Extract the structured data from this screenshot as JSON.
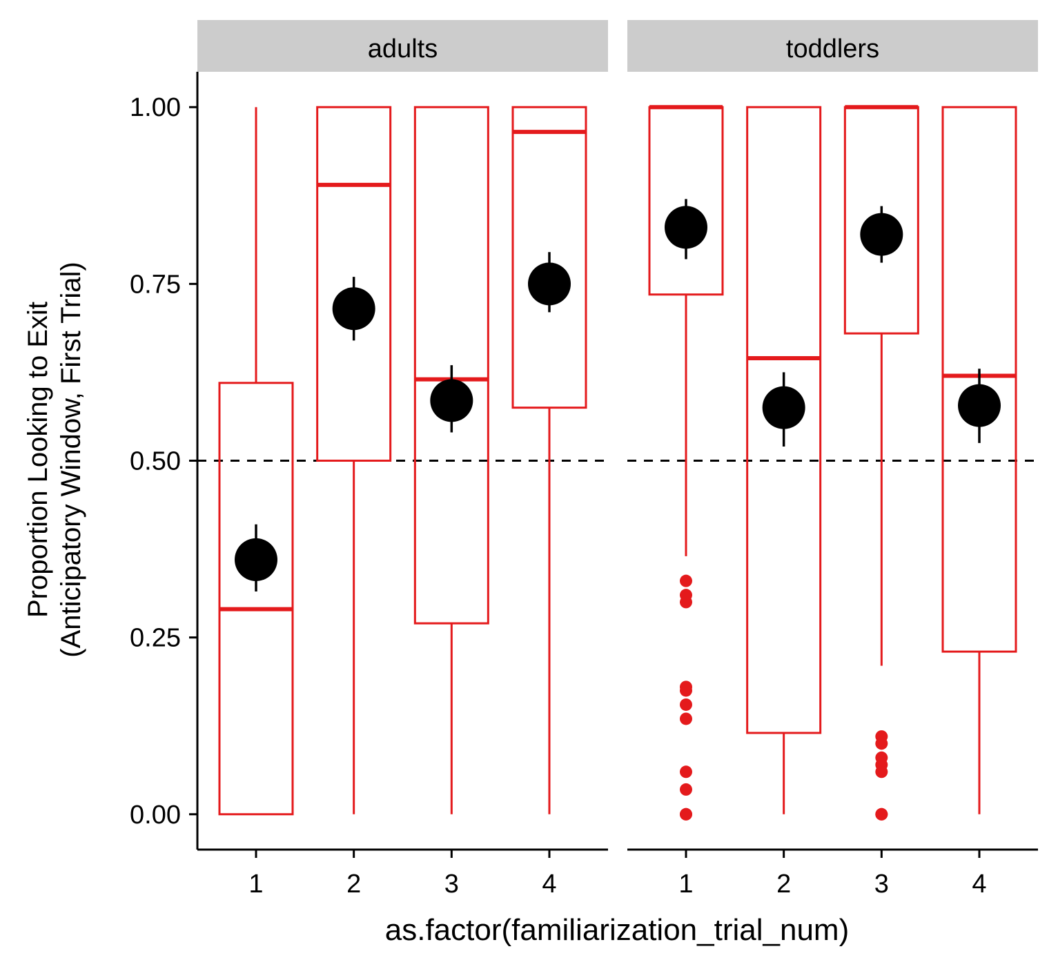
{
  "chart_data": {
    "type": "box",
    "xlabel": "as.factor(familiarization_trial_num)",
    "ylabel": [
      "Proportion Looking to Exit",
      "(Anticipatory Window, First Trial)"
    ],
    "ylim": [
      -0.05,
      1.05
    ],
    "yticks": [
      "0.00",
      "0.25",
      "0.50",
      "0.75",
      "1.00"
    ],
    "ytick_values": [
      0,
      0.25,
      0.5,
      0.75,
      1.0
    ],
    "reference_line": 0.5,
    "grid": false,
    "colors": {
      "box": "#e41a1c",
      "mean": "#000000",
      "strip": "#cccccc",
      "ref_line": "#000000"
    },
    "panels": [
      {
        "label": "adults",
        "categories": [
          "1",
          "2",
          "3",
          "4"
        ],
        "boxes": [
          {
            "x": "1",
            "min": 0.0,
            "q1": 0.0,
            "median": 0.29,
            "q3": 0.61,
            "max": 1.0,
            "outliers": [],
            "mean": 0.36,
            "se_low": 0.315,
            "se_high": 0.41
          },
          {
            "x": "2",
            "min": 0.0,
            "q1": 0.5,
            "median": 0.89,
            "q3": 1.0,
            "max": 1.0,
            "outliers": [],
            "mean": 0.715,
            "se_low": 0.67,
            "se_high": 0.76
          },
          {
            "x": "3",
            "min": 0.0,
            "q1": 0.27,
            "median": 0.615,
            "q3": 1.0,
            "max": 1.0,
            "outliers": [],
            "mean": 0.585,
            "se_low": 0.54,
            "se_high": 0.635
          },
          {
            "x": "4",
            "min": 0.0,
            "q1": 0.575,
            "median": 0.965,
            "q3": 1.0,
            "max": 1.0,
            "outliers": [],
            "mean": 0.75,
            "se_low": 0.71,
            "se_high": 0.795
          }
        ]
      },
      {
        "label": "toddlers",
        "categories": [
          "1",
          "2",
          "3",
          "4"
        ],
        "boxes": [
          {
            "x": "1",
            "min": 0.365,
            "q1": 0.735,
            "median": 1.0,
            "q3": 1.0,
            "max": 1.0,
            "outliers": [
              0.33,
              0.31,
              0.3,
              0.18,
              0.175,
              0.155,
              0.135,
              0.06,
              0.035,
              0.0,
              0.0
            ],
            "mean": 0.83,
            "se_low": 0.785,
            "se_high": 0.87
          },
          {
            "x": "2",
            "min": 0.0,
            "q1": 0.115,
            "median": 0.645,
            "q3": 1.0,
            "max": 1.0,
            "outliers": [],
            "mean": 0.575,
            "se_low": 0.52,
            "se_high": 0.625
          },
          {
            "x": "3",
            "min": 0.21,
            "q1": 0.68,
            "median": 1.0,
            "q3": 1.0,
            "max": 1.0,
            "outliers": [
              0.11,
              0.1,
              0.08,
              0.07,
              0.06,
              0.0,
              0.0
            ],
            "mean": 0.82,
            "se_low": 0.78,
            "se_high": 0.86
          },
          {
            "x": "4",
            "min": 0.0,
            "q1": 0.23,
            "median": 0.62,
            "q3": 1.0,
            "max": 1.0,
            "outliers": [],
            "mean": 0.578,
            "se_low": 0.525,
            "se_high": 0.63
          }
        ]
      }
    ]
  }
}
